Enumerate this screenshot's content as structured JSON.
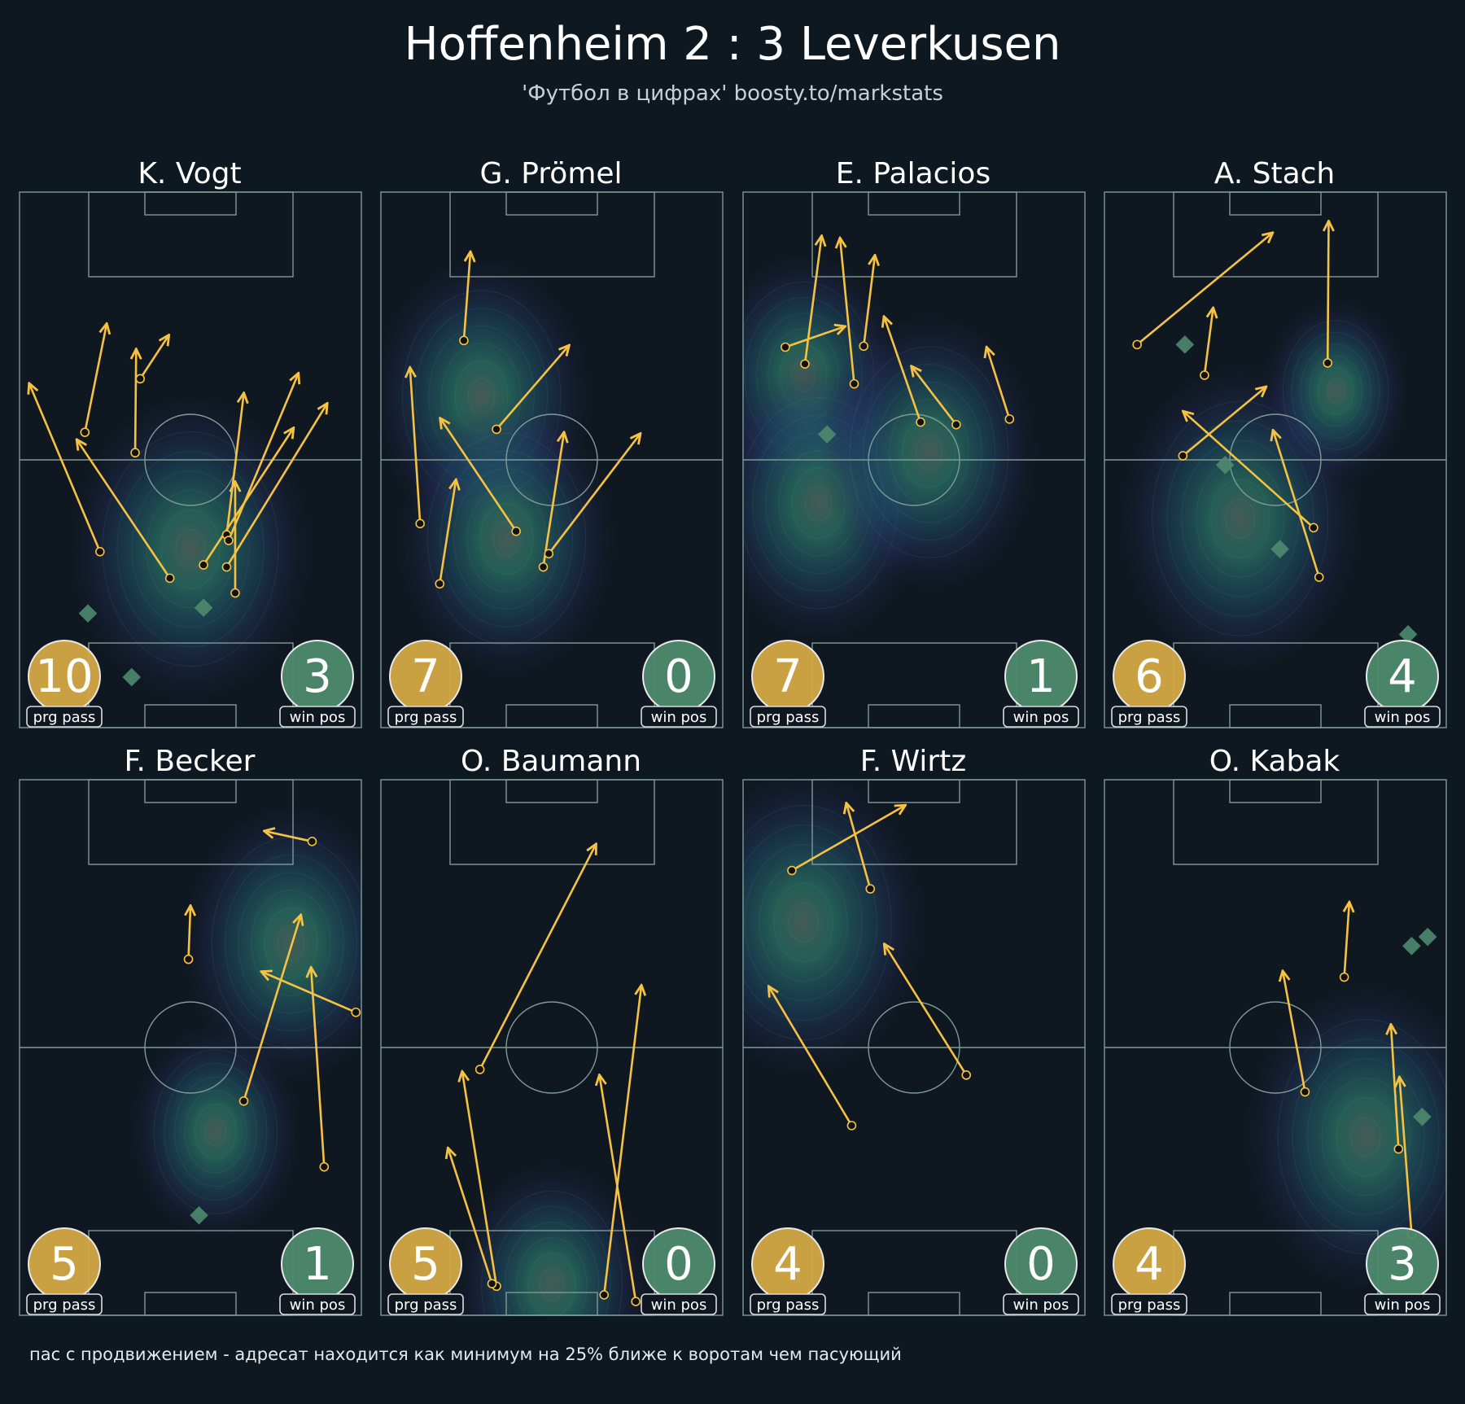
{
  "title": "Hoffenheim 2 : 3 Leverkusen",
  "subtitle": "'Футбол в цифрах' boosty.to/markstats",
  "footer": "пас с продвижением - адресат находится как минимум на 25% ближе к воротам чем пасующий",
  "badge_labels": {
    "left": "prg pass",
    "right": "win pos"
  },
  "colors": {
    "background": "#0e1820",
    "pitch_lines": "#7f9a96",
    "pass_arrow": "#f5c242",
    "prg_pass_badge": "#d4a944",
    "win_pos_badge": "#4e8a6e"
  },
  "chart_data": {
    "type": "pass-map",
    "pitch_units": {
      "width": 68,
      "length": 105,
      "attacking_direction": "up"
    },
    "players": [
      {
        "name": "K. Vogt",
        "prg_pass": 10,
        "win_pos": 3,
        "passes": [
          [
            16.0,
            70.5,
            2.0,
            37.7
          ],
          [
            13.0,
            47.1,
            17.3,
            26.0
          ],
          [
            23.0,
            51.1,
            23.2,
            31.0
          ],
          [
            24.0,
            36.6,
            29.6,
            28.2
          ],
          [
            29.9,
            75.7,
            11.5,
            48.7
          ],
          [
            36.6,
            73.1,
            54.4,
            46.4
          ],
          [
            41.2,
            67.2,
            44.6,
            39.6
          ],
          [
            41.6,
            68.3,
            55.4,
            35.7
          ],
          [
            41.2,
            73.5,
            61.1,
            41.6
          ],
          [
            42.9,
            78.6,
            42.9,
            57.0
          ]
        ],
        "win_positions": [
          [
            13.6,
            82.6
          ],
          [
            36.6,
            81.5
          ],
          [
            22.3,
            95.1
          ]
        ],
        "heat_centers": [
          [
            34,
            70,
            1.0
          ]
        ]
      },
      {
        "name": "G. Prömel",
        "prg_pass": 7,
        "win_pos": 0,
        "passes": [
          [
            16.5,
            29.1,
            17.8,
            11.9
          ],
          [
            23.0,
            46.5,
            37.3,
            30.2
          ],
          [
            7.8,
            65.0,
            5.8,
            34.6
          ],
          [
            11.7,
            76.8,
            14.9,
            56.6
          ],
          [
            26.9,
            66.5,
            11.9,
            44.5
          ],
          [
            32.3,
            73.5,
            36.4,
            47.3
          ],
          [
            33.4,
            70.9,
            51.5,
            47.5
          ]
        ],
        "win_positions": [],
        "heat_centers": [
          [
            20,
            40,
            0.9
          ],
          [
            25,
            68,
            0.9
          ]
        ]
      },
      {
        "name": "E. Palacios",
        "prg_pass": 7,
        "win_pos": 1,
        "passes": [
          [
            8.4,
            30.4,
            20.1,
            26.4
          ],
          [
            12.3,
            33.7,
            15.6,
            8.8
          ],
          [
            22.1,
            37.6,
            19.3,
            9.2
          ],
          [
            24.0,
            30.2,
            26.2,
            12.6
          ],
          [
            35.3,
            45.1,
            28.1,
            24.6
          ],
          [
            42.4,
            45.6,
            33.6,
            34.3
          ],
          [
            53.0,
            44.5,
            48.5,
            30.6
          ]
        ],
        "win_positions": [
          [
            16.7,
            47.5
          ]
        ],
        "heat_centers": [
          [
            12,
            36,
            0.8
          ],
          [
            15,
            61,
            0.9
          ],
          [
            37,
            51,
            0.9
          ]
        ]
      },
      {
        "name": "A. Stach",
        "prg_pass": 6,
        "win_pos": 4,
        "passes": [
          [
            6.5,
            29.9,
            33.3,
            8.1
          ],
          [
            19.9,
            35.9,
            21.6,
            22.9
          ],
          [
            44.4,
            33.5,
            44.6,
            5.9
          ],
          [
            15.6,
            51.7,
            32.0,
            38.3
          ],
          [
            41.6,
            65.8,
            15.8,
            43.1
          ],
          [
            42.7,
            75.5,
            33.6,
            46.9
          ]
        ],
        "win_positions": [
          [
            16.0,
            29.9
          ],
          [
            24.0,
            53.5
          ],
          [
            34.9,
            70.0
          ],
          [
            60.4,
            86.7
          ]
        ],
        "heat_centers": [
          [
            27,
            64,
            1.0
          ],
          [
            46,
            39,
            0.6
          ]
        ]
      },
      {
        "name": "F. Becker",
        "prg_pass": 5,
        "win_pos": 1,
        "passes": [
          [
            58.2,
            12.1,
            48.9,
            10.1
          ],
          [
            33.6,
            35.2,
            34.0,
            24.9
          ],
          [
            66.9,
            45.6,
            48.3,
            37.7
          ],
          [
            44.6,
            63.0,
            55.9,
            26.7
          ],
          [
            60.6,
            75.9,
            58.0,
            37.0
          ]
        ],
        "win_positions": [
          [
            35.7,
            85.4
          ]
        ],
        "heat_centers": [
          [
            54,
            32,
            0.9
          ],
          [
            39,
            69,
            0.7
          ]
        ]
      },
      {
        "name": "O. Baumann",
        "prg_pass": 5,
        "win_pos": 0,
        "passes": [
          [
            19.7,
            56.8,
            42.7,
            12.8
          ],
          [
            23.0,
            99.3,
            16.2,
            57.4
          ],
          [
            22.1,
            98.8,
            13.4,
            72.4
          ],
          [
            44.4,
            101.0,
            51.8,
            40.5
          ],
          [
            50.7,
            102.3,
            43.5,
            58.1
          ]
        ],
        "win_positions": [],
        "heat_centers": [
          [
            34,
            99,
            0.8
          ]
        ]
      },
      {
        "name": "F. Wirtz",
        "prg_pass": 4,
        "win_pos": 0,
        "passes": [
          [
            9.7,
            17.8,
            32.1,
            5.1
          ],
          [
            25.3,
            21.4,
            20.6,
            4.8
          ],
          [
            44.4,
            57.9,
            28.2,
            32.4
          ],
          [
            21.6,
            67.8,
            5.2,
            40.7
          ]
        ],
        "win_positions": [],
        "heat_centers": [
          [
            12,
            28,
            1.0
          ]
        ]
      },
      {
        "name": "O. Kabak",
        "prg_pass": 4,
        "win_pos": 3,
        "passes": [
          [
            47.7,
            38.7,
            48.7,
            24.2
          ],
          [
            39.9,
            61.2,
            35.5,
            37.7
          ],
          [
            58.5,
            72.4,
            57.0,
            48.2
          ],
          [
            61.1,
            89.1,
            58.7,
            58.5
          ]
        ],
        "win_positions": [
          [
            61.1,
            32.6
          ],
          [
            64.3,
            30.8
          ],
          [
            63.2,
            66.1
          ]
        ],
        "heat_centers": [
          [
            52,
            70,
            1.0
          ]
        ]
      }
    ]
  }
}
